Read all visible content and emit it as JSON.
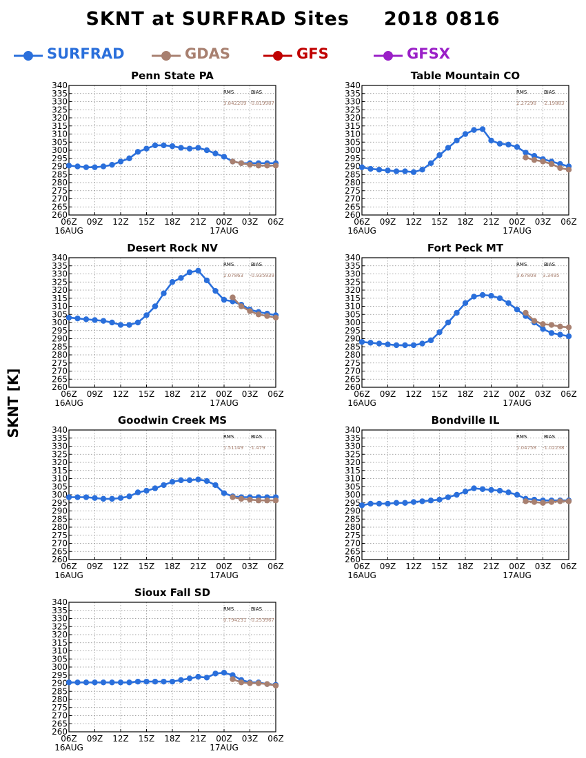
{
  "header": {
    "title_left": "SKNT at SURFRAD Sites",
    "title_right": "2018 0816"
  },
  "legend": [
    {
      "name": "SURFRAD",
      "color": "#2a6fdb"
    },
    {
      "name": "GDAS",
      "color": "#a88070"
    },
    {
      "name": "GFS",
      "color": "#c00000"
    },
    {
      "name": "GFSX",
      "color": "#9a1fc7"
    }
  ],
  "ylabel": "SKNT [K]",
  "chart_data": [
    {
      "type": "line",
      "title": "Penn State PA",
      "x_ticks": [
        "06Z",
        "09Z",
        "12Z",
        "15Z",
        "18Z",
        "21Z",
        "00Z",
        "03Z",
        "06Z"
      ],
      "x_dates": [
        "16AUG",
        "17AUG"
      ],
      "ylim": [
        260,
        340
      ],
      "y_ticks": [
        260,
        265,
        270,
        275,
        280,
        285,
        290,
        295,
        300,
        305,
        310,
        315,
        320,
        325,
        330,
        335,
        340
      ],
      "grid": true,
      "stats": {
        "rms_label": "RMS",
        "bias_label": "BIAS",
        "rms": "3.842209",
        "bias": "-0.819987"
      },
      "series": [
        {
          "name": "SURFRAD",
          "color": "#2a6fdb",
          "x": [
            0,
            1,
            2,
            3,
            4,
            5,
            6,
            7,
            8,
            9,
            10,
            11,
            12,
            13,
            14,
            15,
            16,
            17,
            18,
            19,
            20,
            21,
            22,
            23,
            24
          ],
          "y": [
            290.5,
            290,
            289.5,
            289.5,
            290,
            291,
            293,
            295,
            299,
            301,
            303,
            303,
            302.5,
            301.5,
            301,
            301.5,
            300,
            298,
            296,
            293,
            292,
            292,
            292,
            292,
            292
          ]
        },
        {
          "name": "GDAS",
          "color": "#a88070",
          "x": [
            19,
            20,
            21,
            22,
            23,
            24
          ],
          "y": [
            293,
            292,
            291,
            290.5,
            290.5,
            290.5
          ]
        }
      ]
    },
    {
      "type": "line",
      "title": "Table Mountain CO",
      "x_ticks": [
        "06Z",
        "09Z",
        "12Z",
        "15Z",
        "18Z",
        "21Z",
        "00Z",
        "03Z",
        "06Z"
      ],
      "x_dates": [
        "16AUG",
        "17AUG"
      ],
      "ylim": [
        260,
        340
      ],
      "y_ticks": [
        260,
        265,
        270,
        275,
        280,
        285,
        290,
        295,
        300,
        305,
        310,
        315,
        320,
        325,
        330,
        335,
        340
      ],
      "grid": true,
      "stats": {
        "rms_label": "RMS",
        "bias_label": "BIAS",
        "rms": "2.27298",
        "bias": "-2.19883"
      },
      "series": [
        {
          "name": "SURFRAD",
          "color": "#2a6fdb",
          "x": [
            0,
            1,
            2,
            3,
            4,
            5,
            6,
            7,
            8,
            9,
            10,
            11,
            12,
            13,
            14,
            15,
            16,
            17,
            18,
            19,
            20,
            21,
            22,
            23,
            24
          ],
          "y": [
            289.5,
            288.5,
            288,
            287.5,
            287,
            287,
            286.5,
            288,
            292,
            297,
            301.5,
            306,
            310,
            312.5,
            313,
            306,
            304,
            303.5,
            302,
            298.5,
            296.5,
            294.5,
            293,
            291.5,
            290
          ]
        },
        {
          "name": "GDAS",
          "color": "#a88070",
          "x": [
            19,
            20,
            21,
            22,
            23,
            24
          ],
          "y": [
            295.5,
            294,
            293,
            291.5,
            289,
            288
          ]
        }
      ]
    },
    {
      "type": "line",
      "title": "Desert Rock NV",
      "x_ticks": [
        "06Z",
        "09Z",
        "12Z",
        "15Z",
        "18Z",
        "21Z",
        "00Z",
        "03Z",
        "06Z"
      ],
      "x_dates": [
        "16AUG",
        "17AUG"
      ],
      "ylim": [
        260,
        340
      ],
      "y_ticks": [
        260,
        265,
        270,
        275,
        280,
        285,
        290,
        295,
        300,
        305,
        310,
        315,
        320,
        325,
        330,
        335,
        340
      ],
      "grid": true,
      "stats": {
        "rms_label": "RMS",
        "bias_label": "BIAS",
        "rms": "2.07863",
        "bias": "-0.935939"
      },
      "series": [
        {
          "name": "SURFRAD",
          "color": "#2a6fdb",
          "x": [
            0,
            1,
            2,
            3,
            4,
            5,
            6,
            7,
            8,
            9,
            10,
            11,
            12,
            13,
            14,
            15,
            16,
            17,
            18,
            19,
            20,
            21,
            22,
            23,
            24
          ],
          "y": [
            303,
            302.5,
            302,
            301.5,
            301,
            300,
            298.5,
            298.5,
            300,
            304.5,
            310,
            318,
            325,
            327.5,
            331,
            332,
            326,
            319.5,
            314,
            313,
            311,
            308,
            306.5,
            305.5,
            304.5
          ]
        },
        {
          "name": "GDAS",
          "color": "#a88070",
          "x": [
            19,
            20,
            21,
            22,
            23,
            24
          ],
          "y": [
            315.5,
            310,
            307,
            305,
            304,
            303
          ]
        }
      ]
    },
    {
      "type": "line",
      "title": "Fort Peck MT",
      "x_ticks": [
        "06Z",
        "09Z",
        "12Z",
        "15Z",
        "18Z",
        "21Z",
        "00Z",
        "03Z",
        "06Z"
      ],
      "x_dates": [
        "16AUG",
        "17AUG"
      ],
      "ylim": [
        260,
        340
      ],
      "y_ticks": [
        260,
        265,
        270,
        275,
        280,
        285,
        290,
        295,
        300,
        305,
        310,
        315,
        320,
        325,
        330,
        335,
        340
      ],
      "grid": true,
      "stats": {
        "rms_label": "RMS",
        "bias_label": "BIAS",
        "rms": "3.67808",
        "bias": "3.3495"
      },
      "series": [
        {
          "name": "SURFRAD",
          "color": "#2a6fdb",
          "x": [
            0,
            1,
            2,
            3,
            4,
            5,
            6,
            7,
            8,
            9,
            10,
            11,
            12,
            13,
            14,
            15,
            16,
            17,
            18,
            19,
            20,
            21,
            22,
            23,
            24
          ],
          "y": [
            288,
            287.5,
            287,
            286.5,
            286,
            286,
            286,
            287,
            289,
            294,
            300,
            306,
            312,
            316,
            317,
            316.5,
            315,
            312,
            308,
            304,
            300,
            296,
            293.5,
            292.5,
            291.5
          ]
        },
        {
          "name": "GDAS",
          "color": "#a88070",
          "x": [
            19,
            20,
            21,
            22,
            23,
            24
          ],
          "y": [
            306,
            301,
            299,
            298.5,
            297.5,
            297
          ]
        }
      ]
    },
    {
      "type": "line",
      "title": "Goodwin Creek MS",
      "x_ticks": [
        "06Z",
        "09Z",
        "12Z",
        "15Z",
        "18Z",
        "21Z",
        "00Z",
        "03Z",
        "06Z"
      ],
      "x_dates": [
        "16AUG",
        "17AUG"
      ],
      "ylim": [
        260,
        340
      ],
      "y_ticks": [
        260,
        265,
        270,
        275,
        280,
        285,
        290,
        295,
        300,
        305,
        310,
        315,
        320,
        325,
        330,
        335,
        340
      ],
      "grid": true,
      "stats": {
        "rms_label": "RMS",
        "bias_label": "BIAS",
        "rms": "1.51149",
        "bias": "-1.479"
      },
      "series": [
        {
          "name": "SURFRAD",
          "color": "#2a6fdb",
          "x": [
            0,
            1,
            2,
            3,
            4,
            5,
            6,
            7,
            8,
            9,
            10,
            11,
            12,
            13,
            14,
            15,
            16,
            17,
            18,
            19,
            20,
            21,
            22,
            23,
            24
          ],
          "y": [
            298.5,
            298.5,
            298.5,
            298,
            297.5,
            297.5,
            298,
            299,
            301.5,
            302.5,
            304,
            306,
            308,
            309,
            309,
            309.5,
            308.5,
            306,
            301,
            299,
            298.5,
            298.5,
            298.5,
            298.5,
            298.5
          ]
        },
        {
          "name": "GDAS",
          "color": "#a88070",
          "x": [
            19,
            20,
            21,
            22,
            23,
            24
          ],
          "y": [
            298.5,
            297.5,
            297,
            296.5,
            296.5,
            296.5
          ]
        }
      ]
    },
    {
      "type": "line",
      "title": "Bondville IL",
      "x_ticks": [
        "06Z",
        "09Z",
        "12Z",
        "15Z",
        "18Z",
        "21Z",
        "00Z",
        "03Z",
        "06Z"
      ],
      "x_dates": [
        "16AUG",
        "17AUG"
      ],
      "ylim": [
        260,
        340
      ],
      "y_ticks": [
        260,
        265,
        270,
        275,
        280,
        285,
        290,
        295,
        300,
        305,
        310,
        315,
        320,
        325,
        330,
        335,
        340
      ],
      "grid": true,
      "stats": {
        "rms_label": "RMS",
        "bias_label": "BIAS",
        "rms": "1.04758",
        "bias": "-1.02238"
      },
      "series": [
        {
          "name": "SURFRAD",
          "color": "#2a6fdb",
          "x": [
            0,
            1,
            2,
            3,
            4,
            5,
            6,
            7,
            8,
            9,
            10,
            11,
            12,
            13,
            14,
            15,
            16,
            17,
            18,
            19,
            20,
            21,
            22,
            23,
            24
          ],
          "y": [
            293.5,
            294.5,
            294.5,
            294.5,
            295,
            295,
            295.5,
            296,
            296.5,
            297,
            298.5,
            300,
            302,
            304,
            303.5,
            303,
            302.5,
            301.5,
            300,
            297.5,
            297,
            296.5,
            296.5,
            296.5,
            296.5
          ]
        },
        {
          "name": "GDAS",
          "color": "#a88070",
          "x": [
            19,
            20,
            21,
            22,
            23,
            24
          ],
          "y": [
            296,
            295.5,
            295,
            295.5,
            296,
            296
          ]
        }
      ]
    },
    {
      "type": "line",
      "title": "Sioux Fall SD",
      "x_ticks": [
        "06Z",
        "09Z",
        "12Z",
        "15Z",
        "18Z",
        "21Z",
        "00Z",
        "03Z",
        "06Z"
      ],
      "x_dates": [
        "16AUG",
        "17AUG"
      ],
      "ylim": [
        260,
        340
      ],
      "y_ticks": [
        260,
        265,
        270,
        275,
        280,
        285,
        290,
        295,
        300,
        305,
        310,
        315,
        320,
        325,
        330,
        335,
        340
      ],
      "grid": true,
      "stats": {
        "rms_label": "RMS",
        "bias_label": "BIAS",
        "rms": "0.794231",
        "bias": "-0.253967"
      },
      "series": [
        {
          "name": "SURFRAD",
          "color": "#2a6fdb",
          "x": [
            0,
            1,
            2,
            3,
            4,
            5,
            6,
            7,
            8,
            9,
            10,
            11,
            12,
            13,
            14,
            15,
            16,
            17,
            18,
            19,
            20,
            21,
            22,
            23,
            24
          ],
          "y": [
            290.5,
            290.5,
            290.5,
            290.5,
            290.5,
            290.5,
            290.5,
            290.5,
            291,
            291,
            291,
            291,
            291,
            292,
            293,
            294,
            293.5,
            296,
            296.5,
            295,
            292,
            290.5,
            290.5,
            289.5,
            289
          ]
        },
        {
          "name": "GDAS",
          "color": "#a88070",
          "x": [
            19,
            20,
            21,
            22,
            23,
            24
          ],
          "y": [
            292.5,
            290.5,
            290,
            290,
            289.5,
            288.5
          ]
        }
      ]
    }
  ]
}
